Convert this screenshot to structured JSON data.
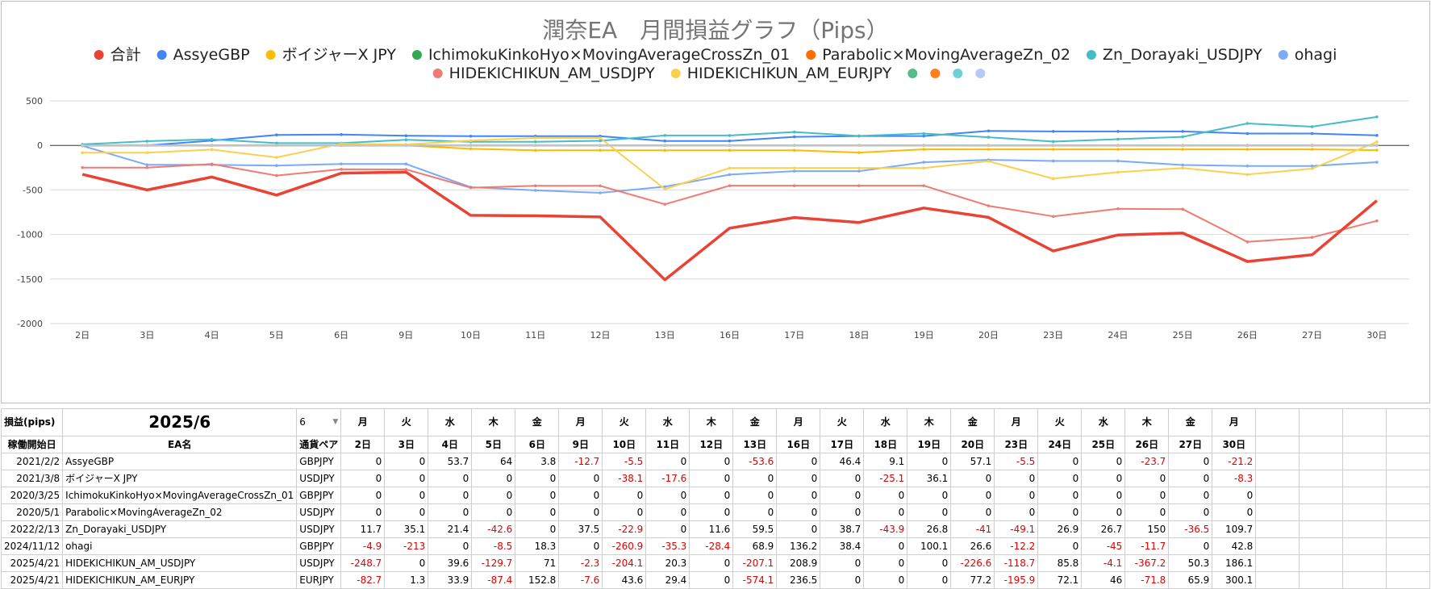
{
  "chart_data": {
    "type": "line",
    "title": "潤奈EA　月間損益グラフ（Pips）",
    "categories": [
      "2日",
      "3日",
      "4日",
      "5日",
      "6日",
      "9日",
      "10日",
      "11日",
      "12日",
      "13日",
      "16日",
      "17日",
      "18日",
      "19日",
      "20日",
      "23日",
      "24日",
      "25日",
      "26日",
      "27日",
      "30日"
    ],
    "ylim": [
      -2000,
      500
    ],
    "yticks": [
      500,
      0,
      -500,
      -1000,
      -1500,
      -2000
    ],
    "grid": true,
    "legend_position": "top",
    "extra_legend_colors": [
      "#57bb8a",
      "#ff7f1e",
      "#6fd0d8",
      "#b6c9f7"
    ],
    "series": [
      {
        "name": "合計",
        "color": "#ea4335",
        "width": 3.5,
        "values": [
          -325,
          -500,
          -355,
          -558,
          -312,
          -300,
          -785,
          -790,
          -803,
          -1508,
          -929,
          -810,
          -865,
          -703,
          -808,
          -1186,
          -1005,
          -985,
          -1303,
          -1228,
          -620
        ]
      },
      {
        "name": "AssyeGBP",
        "color": "#4285f4",
        "width": 2,
        "values": [
          0,
          0,
          53.7,
          117.7,
          121.5,
          108.8,
          103.3,
          103.3,
          103.3,
          49.7,
          49.7,
          96.1,
          105.2,
          105.2,
          162.3,
          156.8,
          156.8,
          156.8,
          133.1,
          133.1,
          111.9
        ]
      },
      {
        "name": "ボイジャーX JPY",
        "color": "#fbbc04",
        "width": 2,
        "values": [
          0,
          0,
          0,
          0,
          0,
          0,
          -38.1,
          -55.7,
          -55.7,
          -55.7,
          -55.7,
          -55.7,
          -80.8,
          -44.7,
          -44.7,
          -44.7,
          -44.7,
          -44.7,
          -44.7,
          -44.7,
          -53
        ]
      },
      {
        "name": "IchimokuKinkoHyo×MovingAverageCrossZn_01",
        "color": "#34a853",
        "width": 2,
        "values": [
          0,
          0,
          0,
          0,
          0,
          0,
          0,
          0,
          0,
          0,
          0,
          0,
          0,
          0,
          0,
          0,
          0,
          0,
          0,
          0,
          0
        ]
      },
      {
        "name": "Parabolic×MovingAverageZn_02",
        "color": "#ff6d01",
        "width": 2,
        "values": [
          0,
          0,
          0,
          0,
          0,
          0,
          0,
          0,
          0,
          0,
          0,
          0,
          0,
          0,
          0,
          0,
          0,
          0,
          0,
          0,
          0
        ]
      },
      {
        "name": "Zn_Dorayaki_USDJPY",
        "color": "#46bdc6",
        "width": 2,
        "values": [
          11.7,
          46.8,
          68.2,
          25.6,
          25.6,
          63.1,
          40.2,
          40.2,
          51.8,
          111.3,
          111.3,
          150,
          106.1,
          132.9,
          91.9,
          42.8,
          69.7,
          96.4,
          246.4,
          209.9,
          319.6
        ]
      },
      {
        "name": "ohagi",
        "color": "#7baaf7",
        "width": 2,
        "values": [
          -4.9,
          -217.9,
          -217.9,
          -226.4,
          -208.1,
          -208.1,
          -469,
          -504.3,
          -532.7,
          -463.8,
          -327.6,
          -289.2,
          -289.2,
          -189.1,
          -162.5,
          -174.7,
          -174.7,
          -219.7,
          -231.4,
          -231.4,
          -188.6
        ]
      },
      {
        "name": "HIDEKICHIKUN_AM_USDJPY",
        "color": "#f07b72",
        "width": 2,
        "values": [
          -248.7,
          -248.7,
          -209.1,
          -338.8,
          -267.8,
          -270.1,
          -474.3,
          -454,
          -454,
          -661.1,
          -452.2,
          -452.2,
          -452.2,
          -452.2,
          -678.8,
          -797.5,
          -711.7,
          -715.8,
          -1083.1,
          -1032.8,
          -846.7
        ]
      },
      {
        "name": "HIDEKICHIKUN_AM_EURJPY",
        "color": "#fcd04f",
        "width": 2,
        "values": [
          -82.7,
          -81.4,
          -47.5,
          -134.9,
          17.9,
          10.3,
          53.9,
          83.3,
          83.3,
          -490.8,
          -254.3,
          -254.3,
          -254.3,
          -254.3,
          -177.1,
          -373,
          -300.9,
          -254.9,
          -326.7,
          -260.8,
          39.3
        ]
      },
      {
        "name": "",
        "color": "#c6c6c6",
        "width": 2,
        "values": [
          0,
          0,
          0,
          0,
          0,
          0,
          0,
          0,
          0,
          0,
          0,
          0,
          0,
          0,
          0,
          0,
          0,
          0,
          0,
          0,
          0
        ]
      }
    ]
  },
  "sheet": {
    "label": "損益(pips)",
    "title": "2025/6",
    "month_value": "6",
    "weekdays": [
      "月",
      "火",
      "水",
      "木",
      "金",
      "月",
      "火",
      "水",
      "木",
      "金",
      "月",
      "火",
      "水",
      "木",
      "金",
      "月",
      "火",
      "水",
      "木",
      "金",
      "月"
    ],
    "header": {
      "start": "稼働開始日",
      "ea": "EA名",
      "pair": "通貨ペア"
    },
    "days": [
      "2日",
      "3日",
      "4日",
      "5日",
      "6日",
      "9日",
      "10日",
      "11日",
      "12日",
      "13日",
      "16日",
      "17日",
      "18日",
      "19日",
      "20日",
      "23日",
      "24日",
      "25日",
      "26日",
      "27日",
      "30日"
    ],
    "rows": [
      [
        "2021/2/2",
        "AssyeGBP",
        "GBPJPY",
        [
          0,
          0,
          53.7,
          64,
          3.8,
          -12.7,
          -5.5,
          0,
          0,
          -53.6,
          0,
          46.4,
          9.1,
          0,
          57.1,
          -5.5,
          0,
          0,
          -23.7,
          0,
          -21.2
        ]
      ],
      [
        "2021/3/8",
        "ボイジャーX JPY",
        "USDJPY",
        [
          0,
          0,
          0,
          0,
          0,
          0,
          -38.1,
          -17.6,
          0,
          0,
          0,
          0,
          -25.1,
          36.1,
          0,
          0,
          0,
          0,
          0,
          0,
          -8.3
        ]
      ],
      [
        "2020/3/25",
        "IchimokuKinkoHyo×MovingAverageCrossZn_01",
        "GBPJPY",
        [
          0,
          0,
          0,
          0,
          0,
          0,
          0,
          0,
          0,
          0,
          0,
          0,
          0,
          0,
          0,
          0,
          0,
          0,
          0,
          0,
          0
        ]
      ],
      [
        "2020/5/1",
        "Parabolic×MovingAverageZn_02",
        "USDJPY",
        [
          0,
          0,
          0,
          0,
          0,
          0,
          0,
          0,
          0,
          0,
          0,
          0,
          0,
          0,
          0,
          0,
          0,
          0,
          0,
          0,
          0
        ]
      ],
      [
        "2022/2/13",
        "Zn_Dorayaki_USDJPY",
        "USDJPY",
        [
          11.7,
          35.1,
          21.4,
          -42.6,
          0,
          37.5,
          -22.9,
          0,
          11.6,
          59.5,
          0,
          38.7,
          -43.9,
          26.8,
          -41,
          -49.1,
          26.9,
          26.7,
          150,
          -36.5,
          109.7
        ]
      ],
      [
        "2024/11/12",
        "ohagi",
        "GBPJPY",
        [
          -4.9,
          -213,
          0,
          -8.5,
          18.3,
          0,
          -260.9,
          -35.3,
          -28.4,
          68.9,
          136.2,
          38.4,
          0,
          100.1,
          26.6,
          -12.2,
          0,
          -45,
          -11.7,
          0,
          42.8
        ]
      ],
      [
        "2025/4/21",
        "HIDEKICHIKUN_AM_USDJPY",
        "USDJPY",
        [
          -248.7,
          0,
          39.6,
          -129.7,
          71,
          -2.3,
          -204.1,
          20.3,
          0,
          -207.1,
          208.9,
          0,
          0,
          0,
          -226.6,
          -118.7,
          85.8,
          -4.1,
          -367.2,
          50.3,
          186.1
        ]
      ],
      [
        "2025/4/21",
        "HIDEKICHIKUN_AM_EURJPY",
        "EURJPY",
        [
          -82.7,
          1.3,
          33.9,
          -87.4,
          152.8,
          -7.6,
          43.6,
          29.4,
          0,
          -574.1,
          236.5,
          0,
          0,
          0,
          77.2,
          -195.9,
          72.1,
          46,
          -71.8,
          65.9,
          300.1
        ]
      ]
    ]
  }
}
